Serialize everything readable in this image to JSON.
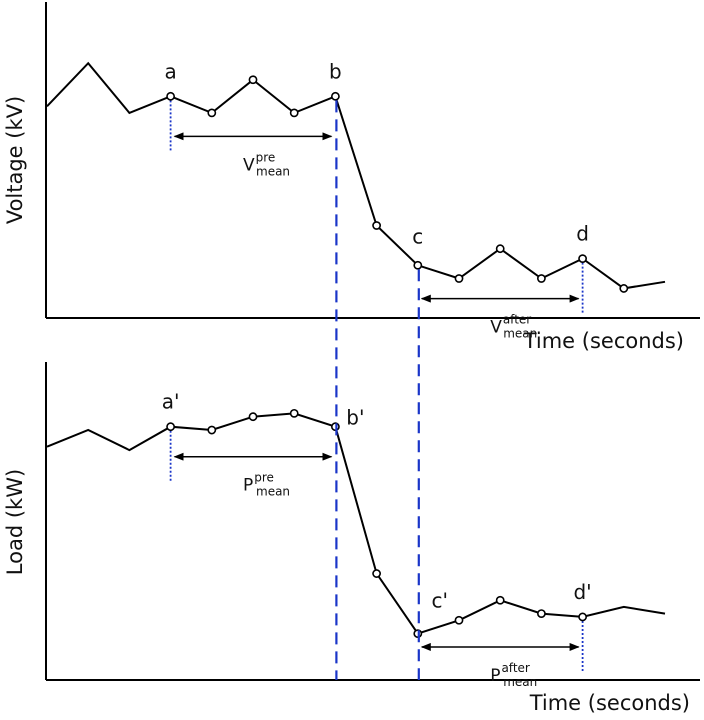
{
  "chart_data": [
    {
      "type": "line",
      "panel": "top",
      "title": "",
      "xlabel": "Time (seconds)",
      "ylabel": "Voltage (kV)",
      "grid": false,
      "x": [
        0,
        1,
        2,
        3,
        4,
        5,
        6,
        7,
        8,
        9,
        10,
        11,
        12,
        13,
        14,
        15
      ],
      "series": [
        {
          "values": [
            60,
            73,
            58,
            63,
            58,
            68,
            58,
            63,
            24,
            12,
            8,
            17,
            8,
            14,
            5,
            7
          ]
        }
      ],
      "markers": [
        3,
        4,
        5,
        6,
        7,
        8,
        9,
        10,
        11,
        12,
        13,
        14
      ],
      "points": [
        {
          "label": "a",
          "index": 3
        },
        {
          "label": "b",
          "index": 7
        },
        {
          "label": "c",
          "index": 9
        },
        {
          "label": "d",
          "index": 13
        }
      ],
      "annotations": [
        {
          "sym": "V",
          "sup": "pre",
          "sub": "mean",
          "from": "a",
          "to": "b"
        },
        {
          "sym": "V",
          "sup": "after",
          "sub": "mean",
          "from": "c",
          "to": "d"
        }
      ]
    },
    {
      "type": "line",
      "panel": "bottom",
      "title": "",
      "xlabel": "Time (seconds)",
      "ylabel": "Load (kW)",
      "grid": false,
      "x": [
        0,
        1,
        2,
        3,
        4,
        5,
        6,
        7,
        8,
        9,
        10,
        11,
        12,
        13,
        14,
        15
      ],
      "series": [
        {
          "values": [
            66,
            71,
            65,
            72,
            71,
            75,
            76,
            72,
            28,
            10,
            14,
            20,
            16,
            15,
            18,
            16
          ]
        }
      ],
      "markers": [
        3,
        4,
        5,
        6,
        7,
        8,
        9,
        10,
        11,
        12,
        13
      ],
      "points": [
        {
          "label": "a'",
          "index": 3
        },
        {
          "label": "b'",
          "index": 7
        },
        {
          "label": "c'",
          "index": 9
        },
        {
          "label": "d'",
          "index": 13
        }
      ],
      "annotations": [
        {
          "sym": "P",
          "sup": "pre",
          "sub": "mean",
          "from": "a'",
          "to": "b'"
        },
        {
          "sym": "P",
          "sup": "after",
          "sub": "mean",
          "from": "c'",
          "to": "d'"
        }
      ]
    }
  ],
  "colors": {
    "line": "#000000",
    "event_lines": "#1a35c8"
  }
}
